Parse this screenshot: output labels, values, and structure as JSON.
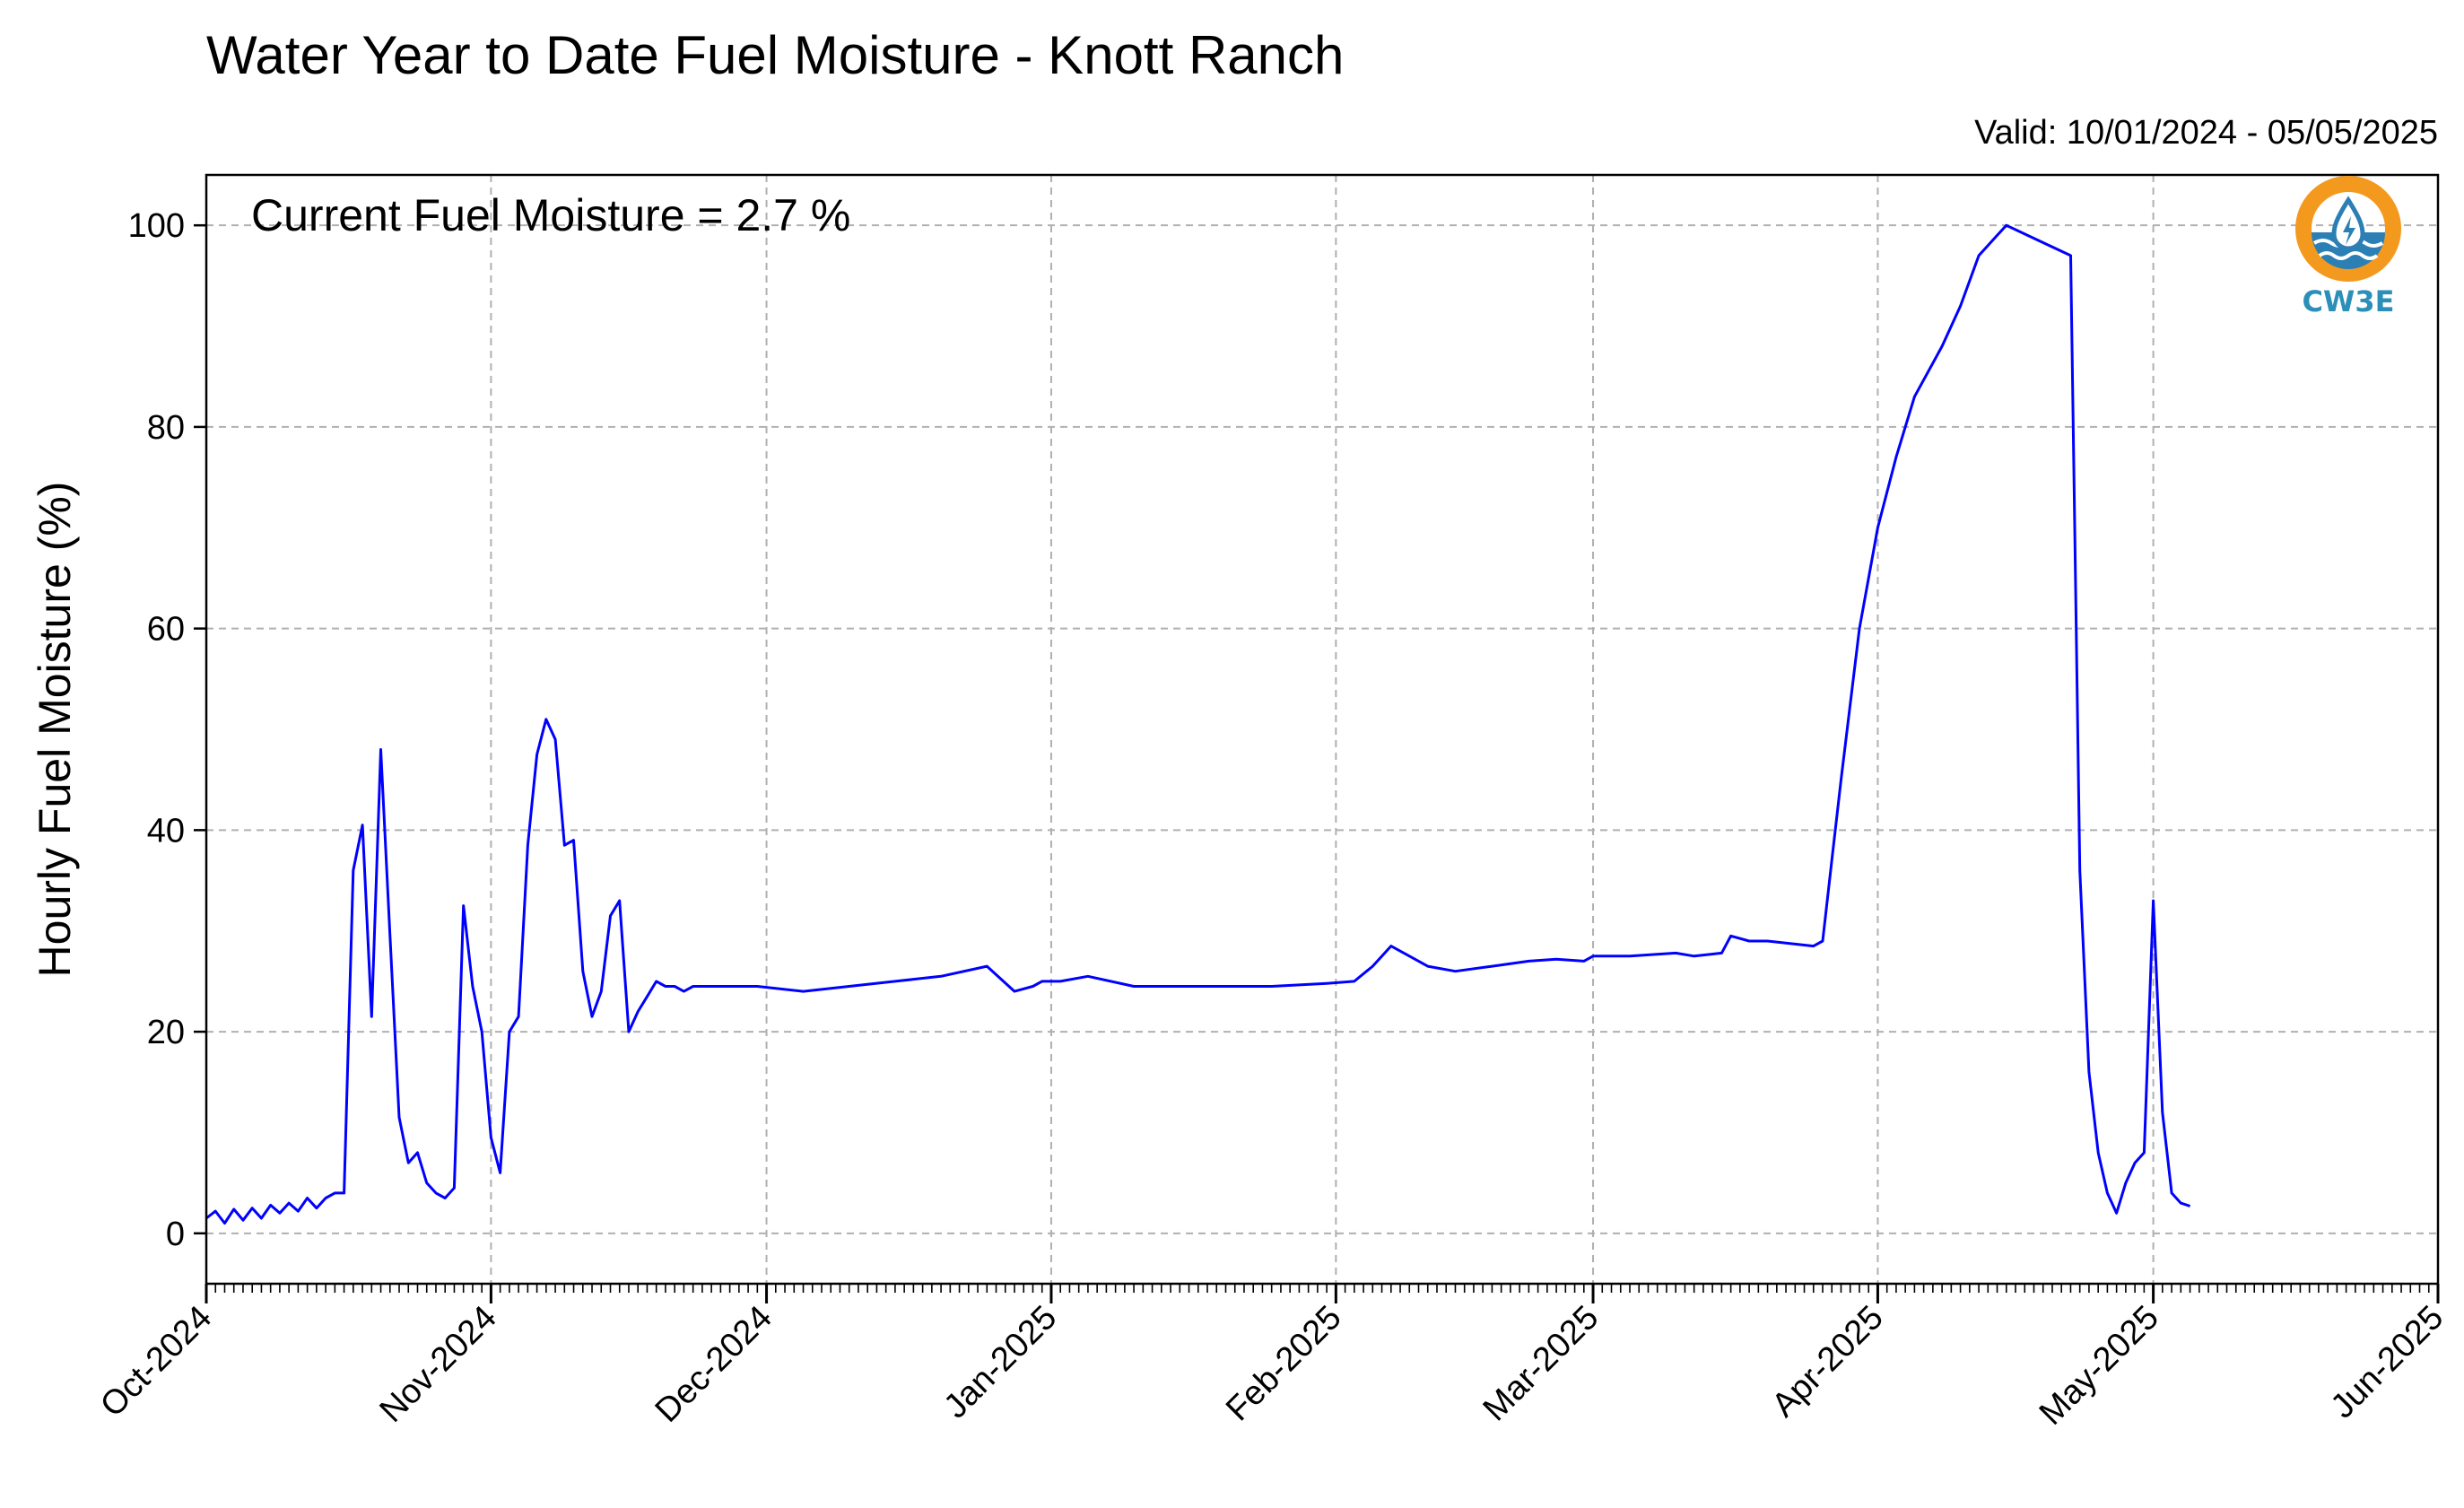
{
  "chart_data": {
    "type": "line",
    "title": "Water Year to Date Fuel Moisture - Knott Ranch",
    "subtitle": "Valid: 10/01/2024 - 05/05/2025",
    "annotation": "Current Fuel Moisture = 2.7 %",
    "xlabel": "",
    "ylabel": "Hourly Fuel Moisture (%)",
    "xlim": [
      "2024-10-01",
      "2025-06-01"
    ],
    "ylim": [
      -5,
      105
    ],
    "x_tick_labels": [
      "Oct-2024",
      "Nov-2024",
      "Dec-2024",
      "Jan-2025",
      "Feb-2025",
      "Mar-2025",
      "Apr-2025",
      "May-2025",
      "Jun-2025"
    ],
    "y_ticks": [
      0,
      20,
      40,
      60,
      80,
      100
    ],
    "grid": true,
    "line_color": "#0000ff",
    "series": [
      {
        "x": [
          "2024-10-01",
          "2024-10-02",
          "2024-10-03",
          "2024-10-04",
          "2024-10-05",
          "2024-10-06",
          "2024-10-07",
          "2024-10-08",
          "2024-10-09",
          "2024-10-10",
          "2024-10-11",
          "2024-10-12",
          "2024-10-13",
          "2024-10-14",
          "2024-10-15",
          "2024-10-16",
          "2024-10-17",
          "2024-10-18",
          "2024-10-19",
          "2024-10-20",
          "2024-10-21",
          "2024-10-22",
          "2024-10-23",
          "2024-10-24",
          "2024-10-25",
          "2024-10-26",
          "2024-10-27",
          "2024-10-28",
          "2024-10-29",
          "2024-10-30",
          "2024-10-31",
          "2024-11-01",
          "2024-11-02",
          "2024-11-03",
          "2024-11-04",
          "2024-11-05",
          "2024-11-06",
          "2024-11-07",
          "2024-11-08",
          "2024-11-09",
          "2024-11-10",
          "2024-11-11",
          "2024-11-12",
          "2024-11-13",
          "2024-11-14",
          "2024-11-15",
          "2024-11-16",
          "2024-11-17",
          "2024-11-18",
          "2024-11-19",
          "2024-11-20",
          "2024-11-21",
          "2024-11-22",
          "2024-11-23",
          "2024-11-25",
          "2024-11-27",
          "2024-11-30",
          "2024-12-05",
          "2024-12-10",
          "2024-12-15",
          "2024-12-20",
          "2024-12-25",
          "2024-12-28",
          "2024-12-30",
          "2024-12-31",
          "2025-01-02",
          "2025-01-05",
          "2025-01-10",
          "2025-01-15",
          "2025-01-20",
          "2025-01-25",
          "2025-01-31",
          "2025-02-03",
          "2025-02-05",
          "2025-02-07",
          "2025-02-09",
          "2025-02-11",
          "2025-02-14",
          "2025-02-18",
          "2025-02-22",
          "2025-02-25",
          "2025-02-28",
          "2025-03-01",
          "2025-03-05",
          "2025-03-10",
          "2025-03-12",
          "2025-03-15",
          "2025-03-16",
          "2025-03-18",
          "2025-03-20",
          "2025-03-25",
          "2025-03-26",
          "2025-03-27",
          "2025-03-28",
          "2025-03-30",
          "2025-04-01",
          "2025-04-03",
          "2025-04-05",
          "2025-04-08",
          "2025-04-10",
          "2025-04-12",
          "2025-04-14",
          "2025-04-15",
          "2025-04-22",
          "2025-04-23",
          "2025-04-24",
          "2025-04-25",
          "2025-04-26",
          "2025-04-27",
          "2025-04-28",
          "2025-04-29",
          "2025-04-30",
          "2025-05-01",
          "2025-05-02",
          "2025-05-03",
          "2025-05-04",
          "2025-05-05"
        ],
        "y": [
          1.5,
          2.2,
          1.0,
          2.4,
          1.3,
          2.5,
          1.5,
          2.8,
          2.0,
          3.0,
          2.2,
          3.5,
          2.5,
          3.5,
          4.0,
          4.0,
          36.0,
          40.5,
          21.5,
          48.0,
          29.5,
          11.5,
          7.0,
          8.0,
          5.0,
          4.0,
          3.5,
          4.5,
          32.5,
          24.5,
          20.0,
          9.5,
          6.0,
          20.0,
          21.5,
          38.5,
          47.5,
          51.0,
          49.0,
          38.5,
          39.0,
          26.0,
          21.5,
          24.0,
          31.5,
          33.0,
          20.0,
          22.0,
          23.5,
          25.0,
          24.5,
          24.5,
          24.0,
          24.5,
          24.5,
          24.5,
          24.5,
          24.0,
          24.5,
          25.0,
          25.5,
          26.5,
          24.0,
          24.5,
          25.0,
          25.0,
          25.5,
          24.5,
          24.5,
          24.5,
          24.5,
          24.8,
          25.0,
          26.5,
          28.5,
          27.5,
          26.5,
          26.0,
          26.5,
          27.0,
          27.2,
          27.0,
          27.5,
          27.5,
          27.8,
          27.5,
          27.8,
          29.5,
          29.0,
          29.0,
          28.5,
          29.0,
          37.0,
          45.0,
          60.0,
          70.0,
          77.0,
          83.0,
          88.0,
          92.0,
          97.0,
          99.0,
          100.0,
          97.0,
          36.0,
          16.0,
          8.0,
          4.0,
          2.0,
          5.0,
          7.0,
          8.0,
          33.0,
          12.0,
          4.0,
          3.0,
          2.7
        ]
      }
    ]
  },
  "logo": {
    "text": "CW3E",
    "ring_color": "#f39a1e",
    "wave_color": "#2b7fb5",
    "text_color": "#2b8fb8"
  }
}
